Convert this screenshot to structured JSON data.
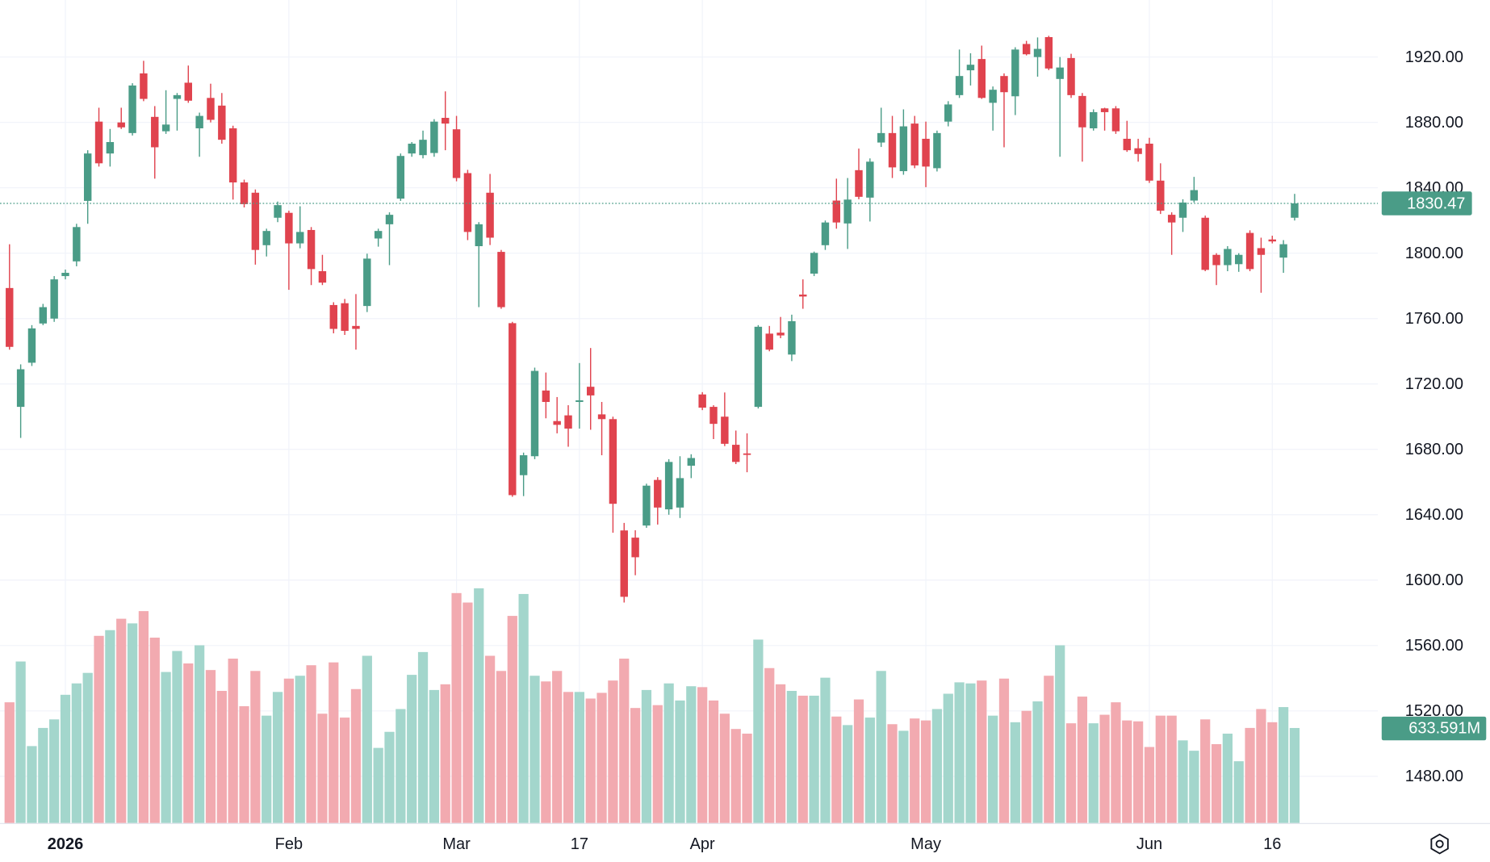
{
  "chart_data": {
    "type": "candlestick",
    "categories": [
      null,
      null,
      null,
      null,
      null,
      "2026",
      null,
      null,
      null,
      null,
      null,
      null,
      null,
      null,
      null,
      null,
      null,
      null,
      null,
      null,
      null,
      null,
      null,
      null,
      null,
      "Feb",
      null,
      null,
      null,
      null,
      null,
      null,
      null,
      null,
      null,
      null,
      null,
      null,
      null,
      null,
      "Mar",
      null,
      null,
      null,
      null,
      null,
      null,
      null,
      null,
      null,
      null,
      "17",
      null,
      null,
      null,
      null,
      null,
      null,
      null,
      null,
      null,
      null,
      "Apr",
      null,
      null,
      null,
      null,
      null,
      null,
      null,
      null,
      null,
      null,
      null,
      null,
      null,
      null,
      null,
      null,
      null,
      null,
      null,
      "May",
      null,
      null,
      null,
      null,
      null,
      null,
      null,
      null,
      null,
      null,
      null,
      null,
      null,
      null,
      null,
      null,
      null,
      null,
      null,
      "Jun",
      null,
      null,
      null,
      null,
      null,
      null,
      null,
      null,
      null,
      null,
      "16",
      null,
      null
    ],
    "open": [
      1778.7,
      1706,
      1733,
      1757,
      1760,
      1786,
      1795,
      1832,
      1880.5,
      1861,
      1880,
      1873.5,
      1910,
      1883.4,
      1874.6,
      1894.4,
      1904.3,
      1876.4,
      1895,
      1890.3,
      1876.4,
      1843.3,
      1837,
      1804.9,
      1821.7,
      1824.7,
      1806,
      1814.2,
      1789,
      1768.3,
      1769.4,
      1755.5,
      1767.7,
      1809,
      1817.7,
      1833.4,
      1861,
      1860,
      1861.3,
      1882.8,
      1875.8,
      1849,
      1804.3,
      1837,
      1800.8,
      1757.2,
      1664.2,
      1675.8,
      1716,
      1697.3,
      1700.8,
      1709,
      1718.3,
      1701.4,
      1698.5,
      1630.4,
      1626,
      1633.4,
      1661.3,
      1643.3,
      1644.4,
      1670,
      1713.6,
      1706,
      1700,
      1682.8,
      1677.5,
      1706,
      1750.8,
      1751.4,
      1738,
      1774.7,
      1787.5,
      1804.9,
      1832.2,
      1818.2,
      1850.8,
      1834,
      1867.7,
      1873.5,
      1850.2,
      1879.3,
      1870,
      1852,
      1880.5,
      1896.7,
      1911.9,
      1918.8,
      1892,
      1908.4,
      1896,
      1928,
      1920,
      1932.2,
      1906.6,
      1919.4,
      1896.2,
      1876.4,
      1888.6,
      1888.6,
      1870,
      1864.2,
      1867,
      1844.4,
      1823.5,
      1821.7,
      1832.2,
      1821.7,
      1799,
      1792.7,
      1793.3,
      1812.4,
      1803.1,
      1808.4,
      1797.3,
      1821.7
    ],
    "high": [
      1805.5,
      1732,
      1756,
      1769,
      1786,
      1790,
      1818,
      1863,
      1889,
      1876,
      1889,
      1904,
      1917.7,
      1890,
      1899.7,
      1898,
      1914.8,
      1886,
      1903.7,
      1898,
      1878,
      1845,
      1839,
      1815,
      1831.6,
      1826,
      1828.7,
      1816,
      1799,
      1770,
      1772,
      1775,
      1799.7,
      1815,
      1825,
      1861,
      1868,
      1875,
      1882,
      1899,
      1884,
      1851,
      1819,
      1848.5,
      1802,
      1758,
      1678,
      1730,
      1727,
      1712,
      1707,
      1732.8,
      1742,
      1709,
      1700,
      1635,
      1630.5,
      1659,
      1663,
      1674,
      1675.8,
      1677,
      1715,
      1707,
      1714.8,
      1691.5,
      1689.8,
      1756,
      1755.5,
      1761,
      1762.4,
      1784,
      1801,
      1820,
      1845.6,
      1846,
      1864,
      1858,
      1889,
      1884,
      1888,
      1884,
      1880.5,
      1875,
      1893,
      1924.6,
      1922.3,
      1927,
      1902,
      1910,
      1926,
      1929.9,
      1932,
      1933,
      1920,
      1922,
      1898,
      1888,
      1889,
      1890,
      1881,
      1870,
      1870.6,
      1855,
      1825,
      1833,
      1846.7,
      1823,
      1800,
      1804.3,
      1800,
      1814,
      1809.5,
      1810.7,
      1808,
      1836.3
    ],
    "low": [
      1741,
      1687,
      1731,
      1756,
      1758,
      1784,
      1792,
      1818,
      1853,
      1853,
      1876,
      1872,
      1893,
      1845.6,
      1873,
      1875,
      1892,
      1859,
      1880,
      1867,
      1832.8,
      1828,
      1793,
      1798,
      1819,
      1777.6,
      1803,
      1780.5,
      1780.5,
      1751,
      1750,
      1741,
      1764,
      1804,
      1792.7,
      1832,
      1859,
      1858,
      1859,
      1863,
      1844,
      1808,
      1767,
      1805,
      1766,
      1651,
      1651.4,
      1674,
      1699,
      1689.8,
      1681.6,
      1692.7,
      1692,
      1676.4,
      1629,
      1586.3,
      1603,
      1632,
      1634,
      1640,
      1638,
      1662.4,
      1704,
      1686.3,
      1682,
      1671,
      1666,
      1705,
      1740,
      1748,
      1734,
      1766,
      1786,
      1802,
      1815,
      1802.6,
      1833,
      1819.4,
      1865,
      1846,
      1848,
      1852,
      1840.4,
      1850,
      1877.6,
      1895,
      1902.6,
      1894.4,
      1875,
      1864.8,
      1884.5,
      1921,
      1908,
      1912,
      1859,
      1895,
      1856,
      1875,
      1875,
      1873,
      1862,
      1856,
      1843,
      1824,
      1799,
      1813,
      1831,
      1789,
      1780.5,
      1789,
      1788.6,
      1789,
      1775.8,
      1806,
      1788,
      1820
    ],
    "close": [
      1742.7,
      1729,
      1754,
      1767,
      1784,
      1788,
      1816,
      1861,
      1855,
      1868,
      1877,
      1902.6,
      1894.4,
      1864.8,
      1878.7,
      1896.7,
      1893.3,
      1884,
      1881.6,
      1869.4,
      1843.3,
      1830,
      1802,
      1813.6,
      1829.4,
      1806,
      1813,
      1790.3,
      1782,
      1753.7,
      1752.5,
      1753.7,
      1796.7,
      1813.6,
      1823.5,
      1859.5,
      1867,
      1869.4,
      1880.5,
      1879.3,
      1846,
      1813,
      1817.7,
      1809.5,
      1767,
      1652,
      1676.4,
      1728,
      1709,
      1695,
      1692.7,
      1710,
      1713,
      1698.5,
      1646.7,
      1589.8,
      1614,
      1657.8,
      1644.4,
      1672.3,
      1662.4,
      1674.7,
      1705.5,
      1695.6,
      1683.4,
      1672.3,
      1677,
      1755,
      1741,
      1749.7,
      1758.4,
      1773.5,
      1800.2,
      1818.8,
      1818.8,
      1832.8,
      1834.5,
      1856,
      1873.5,
      1852.5,
      1877.6,
      1853.7,
      1853,
      1873.5,
      1891,
      1908.4,
      1915.3,
      1895,
      1900,
      1898.5,
      1924.6,
      1921.7,
      1925,
      1913,
      1913.6,
      1896.7,
      1877,
      1886.3,
      1886.3,
      1874.6,
      1863,
      1860.7,
      1844.4,
      1826,
      1818.8,
      1831,
      1838.6,
      1789.8,
      1792.7,
      1802.6,
      1799,
      1790.3,
      1799,
      1807.2,
      1805.5,
      1830.47
    ],
    "volume": {
      "axis": "y2",
      "values": [
        805,
        1077,
        513,
        634,
        691,
        855,
        931,
        1001,
        1248,
        1286,
        1362,
        1331,
        1413,
        1236,
        1007,
        1147,
        1064,
        1185,
        1020,
        881,
        1096,
        779,
        1014,
        716,
        874,
        963,
        982,
        1052,
        729,
        1071,
        703,
        893,
        1115,
        501,
        608,
        760,
        988,
        1140,
        887,
        925,
        1533,
        1470,
        1565,
        1115,
        1014,
        1381,
        1527,
        982,
        944,
        1014,
        874,
        874,
        830,
        868,
        950,
        1096,
        767,
        887,
        786,
        931,
        817,
        912,
        906,
        817,
        729,
        627,
        596,
        1223,
        1033,
        925,
        881,
        849,
        849,
        969,
        710,
        653,
        824,
        703,
        1014,
        659,
        615,
        697,
        684,
        760,
        862,
        938,
        931,
        950,
        716,
        963,
        672,
        748,
        811,
        982,
        1185,
        665,
        843,
        665,
        722,
        805,
        684,
        678,
        507,
        716,
        716,
        551,
        482,
        691,
        526,
        596,
        412,
        634,
        760,
        672,
        773,
        633.591
      ],
      "value_labels": [
        null,
        null,
        null,
        null,
        null,
        null,
        null,
        null,
        null,
        null,
        null,
        null,
        null,
        null,
        null,
        null,
        null,
        null,
        null,
        null,
        null,
        null,
        null,
        null,
        null,
        null,
        null,
        null,
        null,
        null,
        null,
        null,
        null,
        null,
        null,
        null,
        null,
        null,
        null,
        null,
        null,
        null,
        null,
        null,
        null,
        null,
        null,
        null,
        null,
        null,
        null,
        null,
        null,
        null,
        null,
        null,
        null,
        null,
        null,
        null,
        null,
        null,
        null,
        null,
        null,
        null,
        null,
        null,
        null,
        null,
        null,
        null,
        null,
        null,
        null,
        null,
        null,
        null,
        null,
        null,
        null,
        null,
        null,
        null,
        null,
        null,
        null,
        null,
        null,
        null,
        null,
        null,
        null,
        null,
        null,
        null,
        null,
        null,
        null,
        null,
        null,
        null,
        null,
        null,
        null,
        null,
        null,
        null,
        null,
        null,
        null,
        null,
        null,
        null,
        null,
        "633.591M"
      ]
    },
    "ylim": [
      1451.4,
      1954.9
    ],
    "yticks": [
      {
        "value": 1480,
        "label": "1480.00"
      },
      {
        "value": 1520,
        "label": "1520.00"
      },
      {
        "value": 1560,
        "label": "1560.00"
      },
      {
        "value": 1600,
        "label": "1600.00"
      },
      {
        "value": 1640,
        "label": "1640.00"
      },
      {
        "value": 1680,
        "label": "1680.00"
      },
      {
        "value": 1720,
        "label": "1720.00"
      },
      {
        "value": 1760,
        "label": "1760.00"
      },
      {
        "value": 1800,
        "label": "1800.00"
      },
      {
        "value": 1840,
        "label": "1840.00"
      },
      {
        "value": 1880,
        "label": "1880.00"
      },
      {
        "value": 1920,
        "label": "1920.00"
      }
    ],
    "y2lim": [
      0,
      5487
    ],
    "grid": true,
    "up_color": "#4a9c87",
    "down_color": "#e0434e",
    "volume_up_color": "#a3d6cc",
    "volume_down_color": "#f2aab0"
  }
}
